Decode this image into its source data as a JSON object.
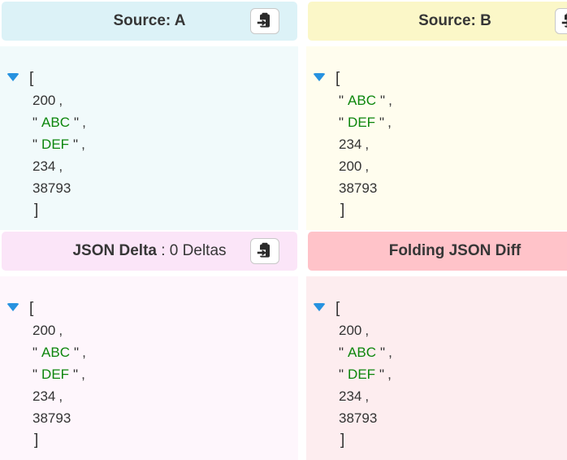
{
  "colors": {
    "source_a_header": "#dcf2f7",
    "source_a_body": "#f1fafb",
    "source_b_header": "#fbf7c8",
    "source_b_body": "#fffdee",
    "delta_header": "#fbe5f8",
    "delta_body": "#fef6fc",
    "folding_header": "#ffc3c9",
    "folding_body": "#fdedef",
    "title_text": "#363636",
    "punctuation": "#333333",
    "string_green": "#0c860c",
    "triangle_blue": "#2792e0",
    "button_border": "#c8c8c8",
    "icon_dark": "#2b2b2b"
  },
  "icons": {
    "paste": "clipboard-with-arrow",
    "collapse": "triangle-down"
  },
  "panels": {
    "source_a": {
      "title": "Source: A",
      "has_paste_button": true,
      "json": {
        "open_bracket": "[",
        "close_bracket": "]",
        "items": [
          {
            "type": "number",
            "value": "200"
          },
          {
            "type": "string",
            "value": "ABC"
          },
          {
            "type": "string",
            "value": "DEF"
          },
          {
            "type": "number",
            "value": "234"
          },
          {
            "type": "number",
            "value": "38793"
          }
        ]
      }
    },
    "source_b": {
      "title": "Source: B",
      "has_paste_button": true,
      "json": {
        "open_bracket": "[",
        "close_bracket": "]",
        "items": [
          {
            "type": "string",
            "value": "ABC"
          },
          {
            "type": "string",
            "value": "DEF"
          },
          {
            "type": "number",
            "value": "234"
          },
          {
            "type": "number",
            "value": "200"
          },
          {
            "type": "number",
            "value": "38793"
          }
        ]
      }
    },
    "delta": {
      "title": "JSON Delta",
      "subtitle": " : 0 Deltas",
      "delta_count": "0",
      "has_paste_button": true,
      "json": {
        "open_bracket": "[",
        "close_bracket": "]",
        "items": [
          {
            "type": "number",
            "value": "200"
          },
          {
            "type": "string",
            "value": "ABC"
          },
          {
            "type": "string",
            "value": "DEF"
          },
          {
            "type": "number",
            "value": "234"
          },
          {
            "type": "number",
            "value": "38793"
          }
        ]
      }
    },
    "folding": {
      "title": "Folding JSON Diff",
      "has_paste_button": false,
      "json": {
        "open_bracket": "[",
        "close_bracket": "]",
        "items": [
          {
            "type": "number",
            "value": "200"
          },
          {
            "type": "string",
            "value": "ABC"
          },
          {
            "type": "string",
            "value": "DEF"
          },
          {
            "type": "number",
            "value": "234"
          },
          {
            "type": "number",
            "value": "38793"
          }
        ]
      }
    }
  }
}
